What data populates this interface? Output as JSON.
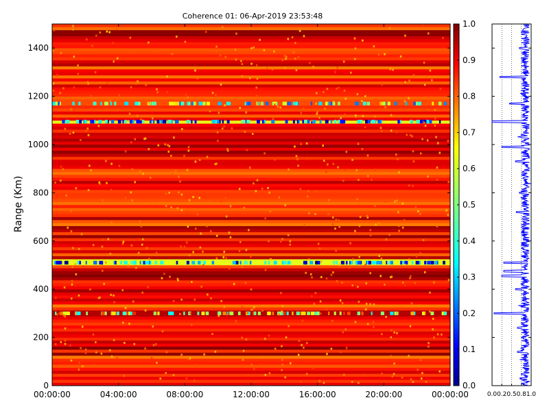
{
  "chart_data": [
    {
      "type": "heatmap",
      "title": "Coherence 01: 06-Apr-2019 23:53:48",
      "ylabel": "Range (Km)",
      "xlabel": "",
      "xlim": [
        "00:00:00",
        "24:00:00"
      ],
      "ylim": [
        0,
        1500
      ],
      "x_tick_labels": [
        "00:00:00",
        "04:00:00",
        "08:00:00",
        "12:00:00",
        "16:00:00",
        "20:00:00",
        "00:00:00"
      ],
      "y_tick_labels": [
        "0",
        "200",
        "400",
        "600",
        "800",
        "1000",
        "1200",
        "1400"
      ],
      "y_ticks": [
        0,
        200,
        400,
        600,
        800,
        1000,
        1200,
        1400
      ],
      "colorbar": {
        "colormap": "jet",
        "range": [
          0.0,
          1.0
        ],
        "tick_labels": [
          "0.0",
          "0.1",
          "0.2",
          "0.3",
          "0.4",
          "0.5",
          "0.6",
          "0.7",
          "0.8",
          "0.9",
          "1.0"
        ]
      },
      "low_coherence_bands_km": [
        {
          "range": 1170,
          "mean_coherence": 0.45
        },
        {
          "range": 1095,
          "mean_coherence": 0.25
        },
        {
          "range": 510,
          "mean_coherence": 0.25
        },
        {
          "range": 300,
          "mean_coherence": 0.6
        }
      ],
      "typical_coherence": 0.9
    },
    {
      "type": "line",
      "xlim": [
        0.0,
        1.0
      ],
      "ylim": [
        0,
        1500
      ],
      "x_tick_labels": [
        "0.0",
        "0.2",
        "0.5",
        "0.8",
        "1.0"
      ],
      "x_ticks": [
        0.0,
        0.25,
        0.5,
        0.75,
        1.0
      ],
      "series": [
        {
          "color": "#0000ff",
          "profile_points": [
            {
              "range": 0,
              "coherence": 0.88
            },
            {
              "range": 30,
              "coherence": 0.75
            },
            {
              "range": 110,
              "coherence": 0.8
            },
            {
              "range": 140,
              "coherence": 0.65
            },
            {
              "range": 200,
              "coherence": 0.85
            },
            {
              "range": 240,
              "coherence": 0.65
            },
            {
              "range": 300,
              "coherence": 0.05
            },
            {
              "range": 330,
              "coherence": 0.75
            },
            {
              "range": 400,
              "coherence": 0.6
            },
            {
              "range": 440,
              "coherence": 0.82
            },
            {
              "range": 455,
              "coherence": 0.25
            },
            {
              "range": 475,
              "coherence": 0.3
            },
            {
              "range": 510,
              "coherence": 0.3
            },
            {
              "range": 560,
              "coherence": 0.85
            },
            {
              "range": 640,
              "coherence": 0.72
            },
            {
              "range": 720,
              "coherence": 0.62
            },
            {
              "range": 800,
              "coherence": 0.7
            },
            {
              "range": 840,
              "coherence": 0.9
            },
            {
              "range": 930,
              "coherence": 0.6
            },
            {
              "range": 990,
              "coherence": 0.25
            },
            {
              "range": 1030,
              "coherence": 0.75
            },
            {
              "range": 1095,
              "coherence": 0.0
            },
            {
              "range": 1170,
              "coherence": 0.45
            },
            {
              "range": 1210,
              "coherence": 0.78
            },
            {
              "range": 1280,
              "coherence": 0.2
            },
            {
              "range": 1330,
              "coherence": 0.88
            },
            {
              "range": 1400,
              "coherence": 0.7
            },
            {
              "range": 1460,
              "coherence": 0.85
            },
            {
              "range": 1500,
              "coherence": 0.9
            }
          ]
        }
      ]
    }
  ]
}
